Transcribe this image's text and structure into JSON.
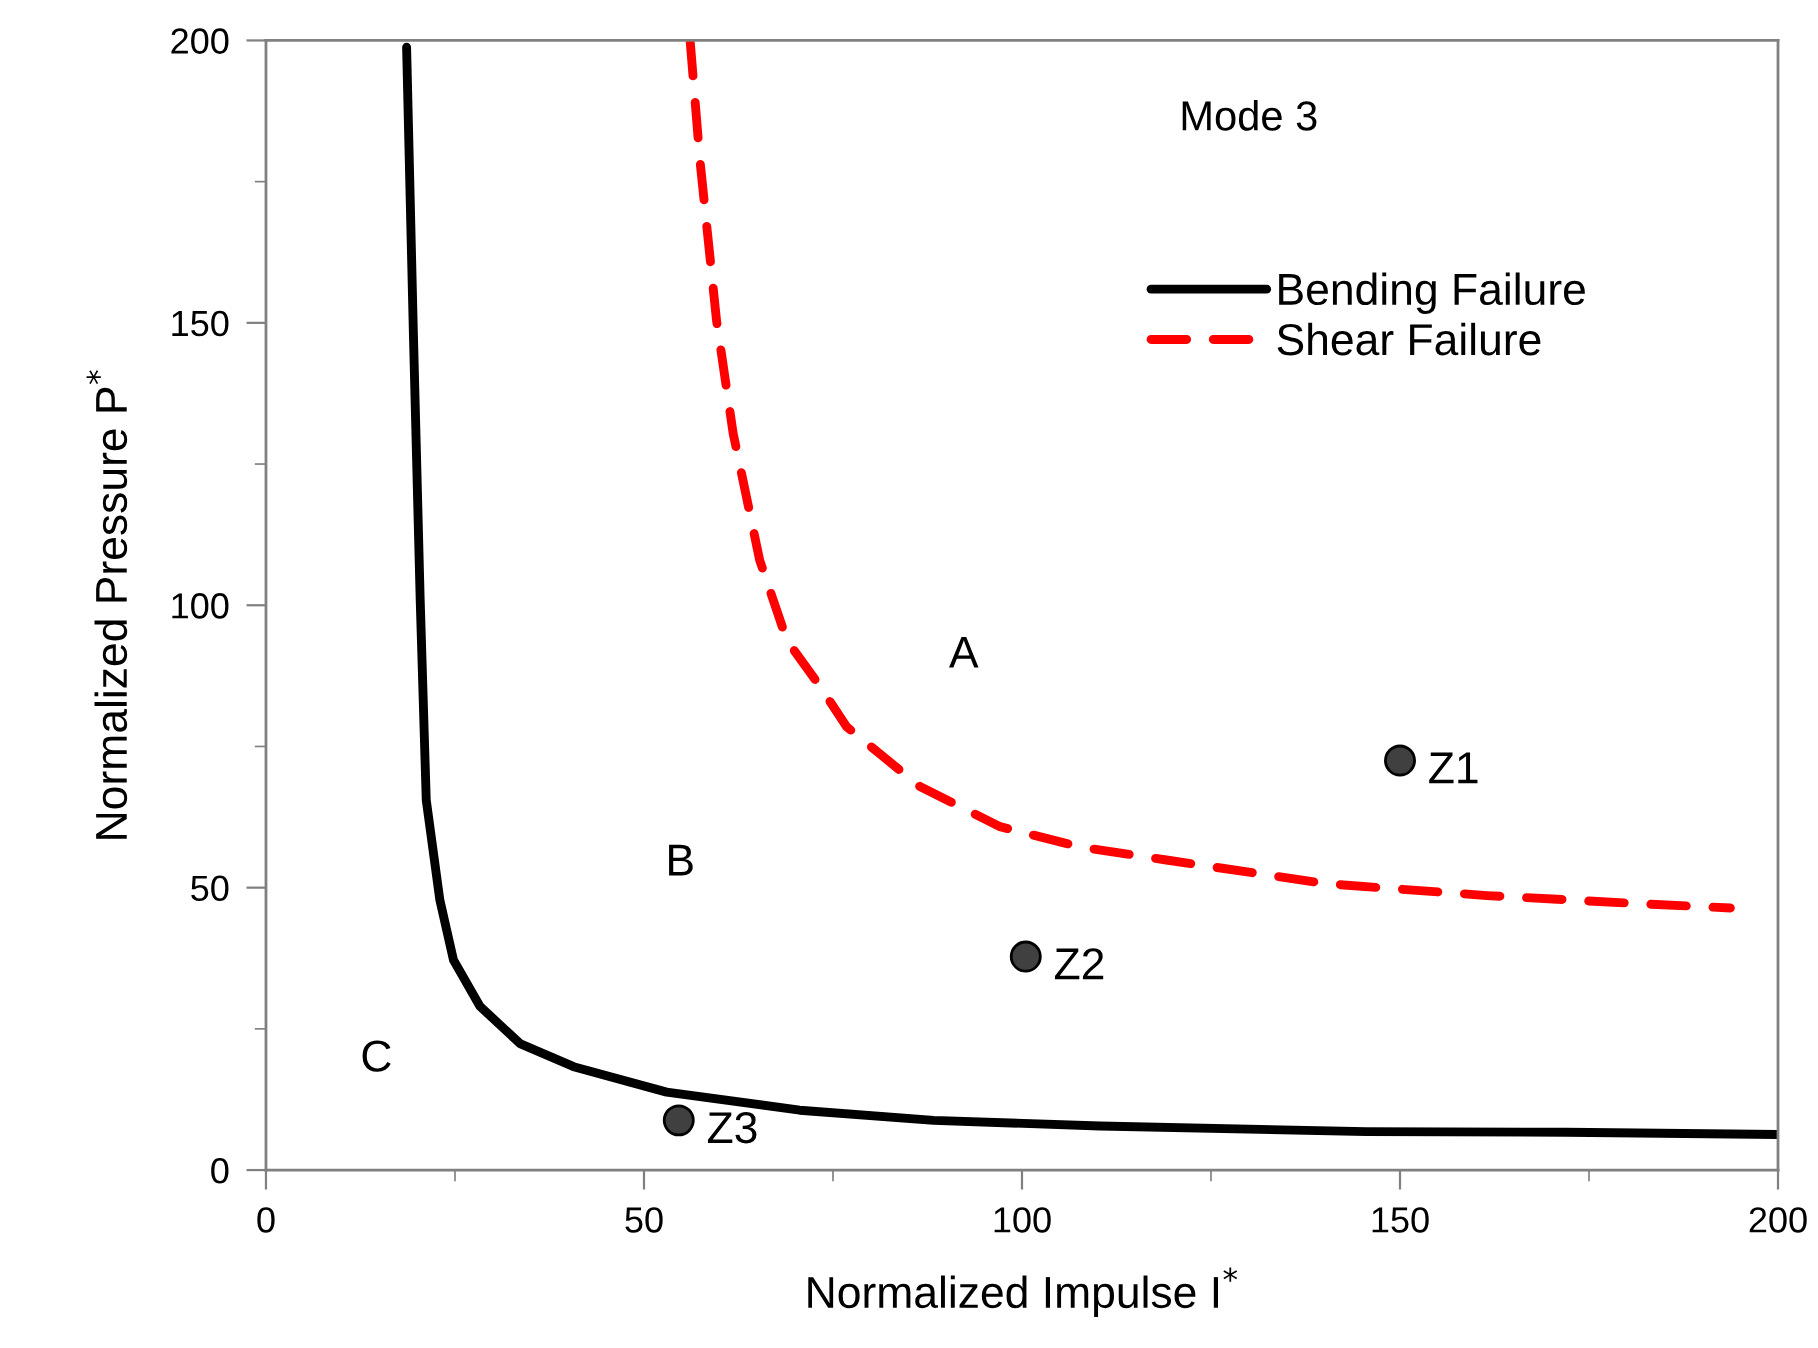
{
  "chart_data": {
    "type": "line",
    "title": "Mode 3",
    "xlabel": "Normalized Impulse I$^{*}$",
    "ylabel": "Normalized Pressure P$^{*}$",
    "xlim": [
      0,
      200
    ],
    "ylim": [
      0,
      200
    ],
    "xticks": [
      0,
      {
        "value": 25,
        "label": null
      },
      50,
      {
        "value": 75,
        "label": null
      },
      100,
      {
        "value": 125,
        "label": null
      },
      150,
      {
        "value": 175,
        "label": null
      },
      200
    ],
    "yticks": [
      0,
      {
        "value": 25,
        "label": null
      },
      50,
      {
        "value": 75,
        "label": null
      },
      100,
      {
        "value": 125,
        "label": null
      },
      150,
      {
        "value": 175,
        "label": null
      },
      200
    ],
    "grid": false,
    "legend": "top right",
    "series": [
      {
        "name": "Bending Failure",
        "color": "#000000",
        "line_style": "solid",
        "marker": "none",
        "x": [
          18.6,
          19.5,
          20.4,
          21.2,
          23.0,
          24.8,
          28.3,
          33.6,
          40.7,
          53.0,
          70.6,
          88.3,
          110.3,
          145.5,
          172,
          200
        ],
        "values": [
          198.8,
          148,
          100.9,
          65.5,
          47.8,
          37.2,
          29.0,
          22.4,
          18.3,
          13.8,
          10.6,
          8.8,
          7.8,
          6.8,
          6.7,
          6.3
        ]
      },
      {
        "name": "Shear Failure",
        "color": "#ff0000",
        "line_style": "dashed",
        "marker": "none",
        "x": [
          56.1,
          57.4,
          59.6,
          61.8,
          65.3,
          68.9,
          73.3,
          76.8,
          86.5,
          97.1,
          107.7,
          119.1,
          140.3,
          161.5,
          182.6,
          193.7
        ],
        "values": [
          200,
          178.8,
          150.4,
          130.4,
          108,
          93.8,
          85.6,
          78.5,
          67.9,
          60.8,
          57.2,
          54.9,
          50.7,
          48.6,
          47.1,
          46.4
        ]
      },
      {
        "type": "scatter",
        "color": "#404040",
        "marker": "circle",
        "x": [
          150,
          100.5,
          54.6
        ],
        "values": [
          72.5,
          37.8,
          8.8
        ]
      }
    ],
    "annotations": [
      {
        "text": "Z1",
        "x": 150,
        "y": 72.5
      },
      {
        "text": "Z2",
        "x": 100.5,
        "y": 37.8
      },
      {
        "text": "Z3",
        "x": 54.6,
        "y": 8.8
      },
      "A",
      "B",
      "C"
    ]
  }
}
